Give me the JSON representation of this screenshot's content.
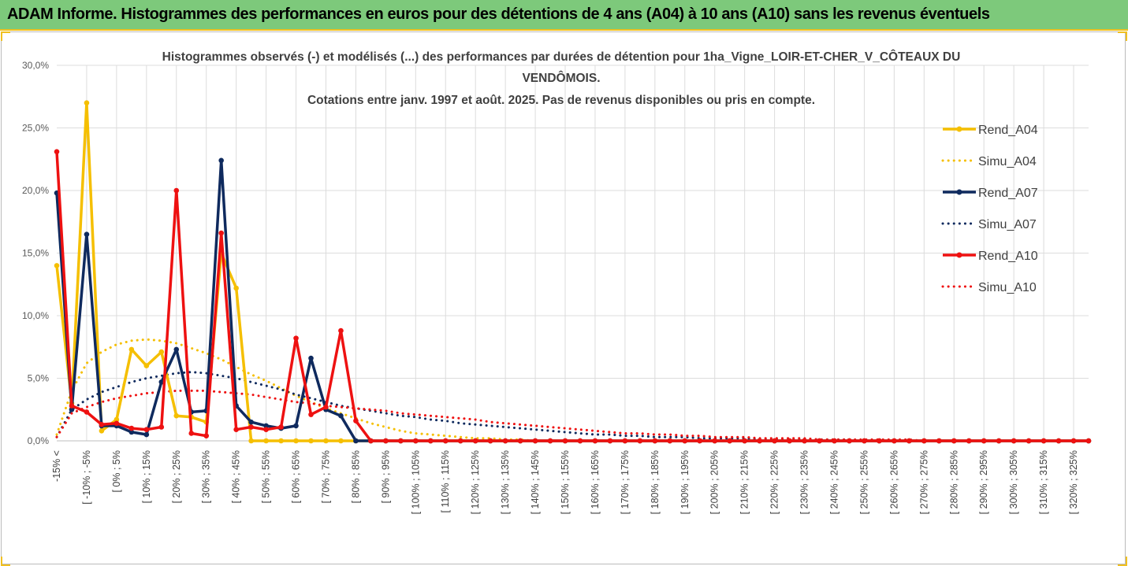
{
  "banner": {
    "title": "ADAM Informe. Histogrammes des performances en euros pour des détentions de 4 ans (A04) à 10 ans (A10) sans les revenus éventuels"
  },
  "colors": {
    "banner_bg": "#7dc97b",
    "accent": "#f0c020",
    "A04": "#f5bf00",
    "A07": "#0f2a5e",
    "A10": "#ee1111",
    "grid": "#dcdcdc"
  },
  "chart_data": {
    "type": "line",
    "title_lines": [
      "Histogrammes observés (-) et modélisés (...) des performances par durées de détention pour 1ha_Vigne_LOIR-ET-CHER_V_CÔTEAUX DU",
      "VENDÔMOIS.",
      "Cotations entre janv. 1997 et août. 2025. Pas de revenus disponibles ou pris en compte."
    ],
    "xlabel": "",
    "ylabel": "",
    "ylim": [
      0,
      0.3
    ],
    "yticks": [
      "0,0%",
      "5,0%",
      "10,0%",
      "15,0%",
      "20,0%",
      "25,0%",
      "30,0%"
    ],
    "grid": true,
    "legend_position": "right",
    "x_labels": [
      "-15% <",
      "[ -10% ; -5%",
      "[ 0% ; 5%",
      "[ 10% ; 15%",
      "[ 20% ; 25%",
      "[ 30% ; 35%",
      "[ 40% ; 45%",
      "[ 50% ; 55%",
      "[ 60% ; 65%",
      "[ 70% ; 75%",
      "[ 80% ; 85%",
      "[ 90% ; 95%",
      "[ 100% ; 105%",
      "[ 110% ; 115%",
      "[ 120% ; 125%",
      "[ 130% ; 135%",
      "[ 140% ; 145%",
      "[ 150% ; 155%",
      "[ 160% ; 165%",
      "[ 170% ; 175%",
      "[ 180% ; 185%",
      "[ 190% ; 195%",
      "[ 200% ; 205%",
      "[ 210% ; 215%",
      "[ 220% ; 225%",
      "[ 230% ; 235%",
      "[ 240% ; 245%",
      "[ 250% ; 255%",
      "[ 260% ; 265%",
      "[ 270% ; 275%",
      "[ 280% ; 285%",
      "[ 290% ; 295%",
      "[ 300% ; 305%",
      "[ 310% ; 315%",
      "[ 320% ; 325%"
    ],
    "n_bins": 70,
    "series": [
      {
        "name": "Rend_A04",
        "style": "solid",
        "color": "#f5bf00",
        "values": [
          0.14,
          0.03,
          0.27,
          0.008,
          0.017,
          0.073,
          0.06,
          0.071,
          0.02,
          0.019,
          0.015,
          0.15,
          0.122,
          0.0,
          0.0,
          0.0,
          0.0,
          0.0,
          0.0,
          0.0,
          0.0,
          0.0,
          0.0,
          0.0,
          0.0,
          0.0,
          0.0,
          0.0,
          0.0,
          0.0,
          0.0,
          0.0,
          0.0,
          0.0,
          0.0,
          0.0,
          0.0,
          0.0,
          0.0,
          0.0,
          0.0,
          0.0,
          0.0,
          0.0,
          0.0,
          0.0,
          0.0,
          0.0,
          0.0,
          0.0,
          0.0,
          0.0,
          0.0,
          0.0,
          0.0,
          0.0,
          0.0,
          0.0,
          0.0,
          0.0,
          0.0,
          0.0,
          0.0,
          0.0,
          0.0,
          0.0,
          0.0,
          0.0,
          0.0,
          0.0
        ]
      },
      {
        "name": "Simu_A04",
        "style": "dotted",
        "color": "#f5bf00",
        "values": [
          0.005,
          0.04,
          0.062,
          0.071,
          0.077,
          0.08,
          0.081,
          0.08,
          0.078,
          0.074,
          0.07,
          0.065,
          0.059,
          0.053,
          0.048,
          0.042,
          0.036,
          0.031,
          0.026,
          0.022,
          0.018,
          0.014,
          0.011,
          0.008,
          0.006,
          0.005,
          0.004,
          0.003,
          0.002,
          0.002,
          0.001,
          0.001,
          0.0,
          0.0,
          0.0,
          0.0,
          0.0,
          0.0,
          0.0,
          0.0,
          0.0,
          0.0,
          0.0,
          0.0,
          0.0,
          0.0,
          0.0,
          0.0,
          0.0,
          0.0,
          0.0,
          0.0,
          0.0,
          0.0,
          0.0,
          0.0,
          0.0,
          0.0,
          0.0,
          0.0,
          0.0,
          0.0,
          0.0,
          0.0,
          0.0,
          0.0,
          0.0,
          0.0,
          0.0,
          0.0
        ]
      },
      {
        "name": "Rend_A07",
        "style": "solid",
        "color": "#0f2a5e",
        "values": [
          0.198,
          0.025,
          0.165,
          0.012,
          0.012,
          0.007,
          0.005,
          0.047,
          0.073,
          0.023,
          0.024,
          0.224,
          0.028,
          0.015,
          0.012,
          0.01,
          0.012,
          0.066,
          0.025,
          0.02,
          0.0,
          0.0,
          0.0,
          0.0,
          0.0,
          0.0,
          0.0,
          0.0,
          0.0,
          0.0,
          0.0,
          0.0,
          0.0,
          0.0,
          0.0,
          0.0,
          0.0,
          0.0,
          0.0,
          0.0,
          0.0,
          0.0,
          0.0,
          0.0,
          0.0,
          0.0,
          0.0,
          0.0,
          0.0,
          0.0,
          0.0,
          0.0,
          0.0,
          0.0,
          0.0,
          0.0,
          0.0,
          0.0,
          0.0,
          0.0,
          0.0,
          0.0,
          0.0,
          0.0,
          0.0,
          0.0,
          0.0,
          0.0,
          0.0,
          0.0
        ]
      },
      {
        "name": "Simu_A07",
        "style": "dotted",
        "color": "#0f2a5e",
        "values": [
          0.003,
          0.025,
          0.033,
          0.039,
          0.043,
          0.047,
          0.05,
          0.052,
          0.054,
          0.055,
          0.054,
          0.052,
          0.05,
          0.047,
          0.044,
          0.041,
          0.037,
          0.034,
          0.031,
          0.028,
          0.026,
          0.024,
          0.022,
          0.02,
          0.019,
          0.017,
          0.016,
          0.014,
          0.013,
          0.012,
          0.011,
          0.01,
          0.009,
          0.008,
          0.007,
          0.006,
          0.005,
          0.005,
          0.004,
          0.004,
          0.003,
          0.003,
          0.003,
          0.002,
          0.002,
          0.002,
          0.002,
          0.001,
          0.001,
          0.001,
          0.001,
          0.001,
          0.001,
          0.001,
          0.0,
          0.0,
          0.0,
          0.0,
          0.0,
          0.0,
          0.0,
          0.0,
          0.0,
          0.0,
          0.0,
          0.0,
          0.0,
          0.0,
          0.0,
          0.0
        ]
      },
      {
        "name": "Rend_A10",
        "style": "solid",
        "color": "#ee1111",
        "values": [
          0.231,
          0.028,
          0.023,
          0.013,
          0.014,
          0.01,
          0.009,
          0.011,
          0.2,
          0.006,
          0.004,
          0.166,
          0.009,
          0.011,
          0.009,
          0.011,
          0.082,
          0.021,
          0.027,
          0.088,
          0.016,
          0.0,
          0.0,
          0.0,
          0.0,
          0.0,
          0.0,
          0.0,
          0.0,
          0.0,
          0.0,
          0.0,
          0.0,
          0.0,
          0.0,
          0.0,
          0.0,
          0.0,
          0.0,
          0.0,
          0.0,
          0.0,
          0.0,
          0.0,
          0.0,
          0.0,
          0.0,
          0.0,
          0.0,
          0.0,
          0.0,
          0.0,
          0.0,
          0.0,
          0.0,
          0.0,
          0.0,
          0.0,
          0.0,
          0.0,
          0.0,
          0.0,
          0.0,
          0.0,
          0.0,
          0.0,
          0.0,
          0.0,
          0.0,
          0.0
        ]
      },
      {
        "name": "Simu_A10",
        "style": "dotted",
        "color": "#ee1111",
        "values": [
          0.003,
          0.022,
          0.027,
          0.031,
          0.034,
          0.036,
          0.038,
          0.039,
          0.04,
          0.04,
          0.04,
          0.039,
          0.038,
          0.037,
          0.035,
          0.033,
          0.031,
          0.03,
          0.028,
          0.027,
          0.026,
          0.025,
          0.024,
          0.022,
          0.021,
          0.02,
          0.019,
          0.018,
          0.017,
          0.015,
          0.014,
          0.013,
          0.012,
          0.011,
          0.01,
          0.009,
          0.008,
          0.007,
          0.006,
          0.006,
          0.005,
          0.005,
          0.004,
          0.004,
          0.003,
          0.003,
          0.003,
          0.002,
          0.002,
          0.002,
          0.002,
          0.001,
          0.001,
          0.001,
          0.001,
          0.001,
          0.001,
          0.001,
          0.0,
          0.0,
          0.0,
          0.0,
          0.0,
          0.0,
          0.0,
          0.0,
          0.0,
          0.0,
          0.0,
          0.0
        ]
      }
    ]
  }
}
